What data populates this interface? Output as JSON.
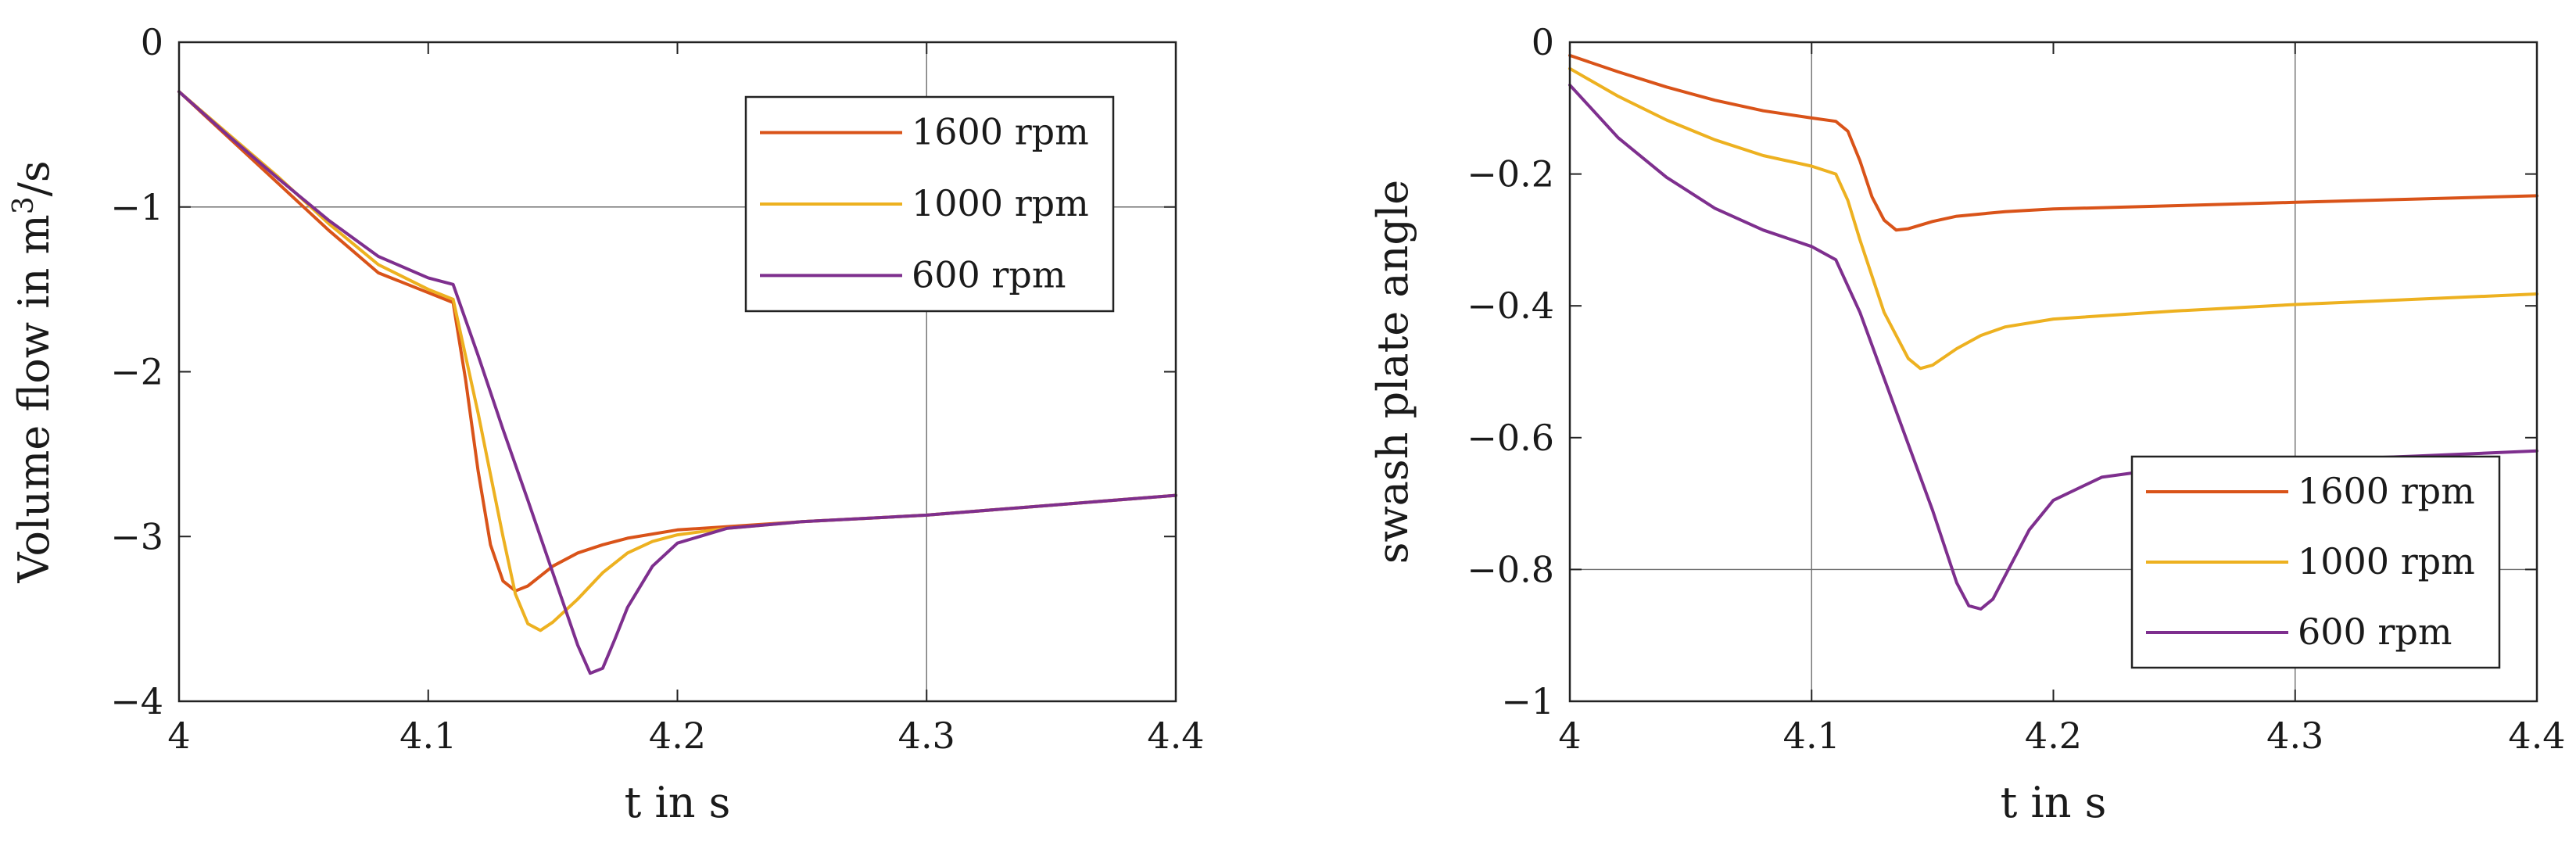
{
  "chart_data": [
    {
      "type": "line",
      "id": "volume-flow",
      "title": "",
      "xlabel": "t in s",
      "ylabel_text": "Volume flow in m",
      "ylabel_superscript": "3",
      "ylabel_suffix": "/s",
      "xlim": [
        4,
        4.4
      ],
      "ylim": [
        -4,
        0
      ],
      "xticks": [
        4,
        4.1,
        4.2,
        4.3,
        4.4
      ],
      "xtick_labels": [
        "4",
        "4.1",
        "4.2",
        "4.3",
        "4.4"
      ],
      "yticks": [
        0,
        -1,
        -2,
        -3,
        -4
      ],
      "ytick_labels": [
        "0",
        "−1",
        "−2",
        "−3",
        "−4"
      ],
      "reference_lines": {
        "horizontal": [
          -1
        ],
        "vertical": [
          4.3
        ]
      },
      "legend_position": "top-right",
      "series": [
        {
          "name": "1600 rpm",
          "color": "#d95319",
          "x": [
            4.0,
            4.02,
            4.04,
            4.06,
            4.08,
            4.1,
            4.11,
            4.115,
            4.12,
            4.125,
            4.13,
            4.135,
            4.14,
            4.145,
            4.15,
            4.16,
            4.17,
            4.18,
            4.2,
            4.25,
            4.3,
            4.35,
            4.4
          ],
          "y": [
            -0.3,
            -0.58,
            -0.86,
            -1.14,
            -1.4,
            -1.52,
            -1.58,
            -2.05,
            -2.6,
            -3.05,
            -3.27,
            -3.33,
            -3.3,
            -3.24,
            -3.18,
            -3.1,
            -3.05,
            -3.01,
            -2.96,
            -2.91,
            -2.87,
            -2.81,
            -2.75
          ]
        },
        {
          "name": "1000 rpm",
          "color": "#edb120",
          "x": [
            4.0,
            4.02,
            4.04,
            4.06,
            4.08,
            4.1,
            4.11,
            4.12,
            4.13,
            4.135,
            4.14,
            4.145,
            4.15,
            4.16,
            4.17,
            4.18,
            4.19,
            4.2,
            4.22,
            4.25,
            4.3,
            4.35,
            4.4
          ],
          "y": [
            -0.3,
            -0.56,
            -0.82,
            -1.1,
            -1.35,
            -1.5,
            -1.56,
            -2.25,
            -3.0,
            -3.35,
            -3.53,
            -3.57,
            -3.52,
            -3.38,
            -3.22,
            -3.1,
            -3.03,
            -2.99,
            -2.95,
            -2.91,
            -2.87,
            -2.81,
            -2.75
          ]
        },
        {
          "name": "600 rpm",
          "color": "#7e2f8e",
          "x": [
            4.0,
            4.02,
            4.04,
            4.06,
            4.08,
            4.1,
            4.11,
            4.12,
            4.13,
            4.14,
            4.15,
            4.16,
            4.165,
            4.17,
            4.175,
            4.18,
            4.19,
            4.2,
            4.22,
            4.25,
            4.3,
            4.35,
            4.4
          ],
          "y": [
            -0.3,
            -0.57,
            -0.83,
            -1.08,
            -1.3,
            -1.43,
            -1.47,
            -1.9,
            -2.35,
            -2.78,
            -3.22,
            -3.66,
            -3.83,
            -3.8,
            -3.62,
            -3.43,
            -3.18,
            -3.04,
            -2.95,
            -2.91,
            -2.87,
            -2.81,
            -2.75
          ]
        }
      ]
    },
    {
      "type": "line",
      "id": "swash-plate",
      "title": "",
      "xlabel": "t in s",
      "ylabel_text": "swash plate angle",
      "ylabel_superscript": "",
      "ylabel_suffix": "",
      "xlim": [
        4,
        4.4
      ],
      "ylim": [
        -1,
        0
      ],
      "xticks": [
        4,
        4.1,
        4.2,
        4.3,
        4.4
      ],
      "xtick_labels": [
        "4",
        "4.1",
        "4.2",
        "4.3",
        "4.4"
      ],
      "yticks": [
        0,
        -0.2,
        -0.4,
        -0.6,
        -0.8,
        -1
      ],
      "ytick_labels": [
        "0",
        "−0.2",
        "−0.4",
        "−0.6",
        "−0.8",
        "−1"
      ],
      "reference_lines": {
        "horizontal": [
          -0.8
        ],
        "vertical": [
          4.1,
          4.3
        ]
      },
      "legend_position": "bottom-right",
      "series": [
        {
          "name": "1600 rpm",
          "color": "#d95319",
          "x": [
            4.0,
            4.02,
            4.04,
            4.06,
            4.08,
            4.1,
            4.11,
            4.115,
            4.12,
            4.125,
            4.13,
            4.135,
            4.14,
            4.15,
            4.16,
            4.18,
            4.2,
            4.25,
            4.3,
            4.35,
            4.4
          ],
          "y": [
            -0.02,
            -0.045,
            -0.068,
            -0.088,
            -0.104,
            -0.115,
            -0.12,
            -0.135,
            -0.18,
            -0.235,
            -0.27,
            -0.285,
            -0.283,
            -0.272,
            -0.264,
            -0.257,
            -0.253,
            -0.248,
            -0.243,
            -0.238,
            -0.233
          ]
        },
        {
          "name": "1000 rpm",
          "color": "#edb120",
          "x": [
            4.0,
            4.02,
            4.04,
            4.06,
            4.08,
            4.1,
            4.11,
            4.115,
            4.12,
            4.13,
            4.14,
            4.145,
            4.15,
            4.16,
            4.17,
            4.18,
            4.2,
            4.25,
            4.3,
            4.35,
            4.4
          ],
          "y": [
            -0.04,
            -0.082,
            -0.118,
            -0.148,
            -0.172,
            -0.188,
            -0.2,
            -0.24,
            -0.3,
            -0.41,
            -0.48,
            -0.495,
            -0.49,
            -0.465,
            -0.445,
            -0.432,
            -0.42,
            -0.408,
            -0.398,
            -0.39,
            -0.382
          ]
        },
        {
          "name": "600 rpm",
          "color": "#7e2f8e",
          "x": [
            4.0,
            4.02,
            4.04,
            4.06,
            4.08,
            4.1,
            4.11,
            4.12,
            4.13,
            4.14,
            4.15,
            4.16,
            4.165,
            4.17,
            4.175,
            4.18,
            4.19,
            4.2,
            4.22,
            4.25,
            4.3,
            4.35,
            4.4
          ],
          "y": [
            -0.065,
            -0.145,
            -0.205,
            -0.252,
            -0.285,
            -0.31,
            -0.33,
            -0.41,
            -0.51,
            -0.61,
            -0.71,
            -0.82,
            -0.855,
            -0.86,
            -0.845,
            -0.81,
            -0.74,
            -0.695,
            -0.66,
            -0.645,
            -0.635,
            -0.628,
            -0.62
          ]
        }
      ]
    }
  ]
}
